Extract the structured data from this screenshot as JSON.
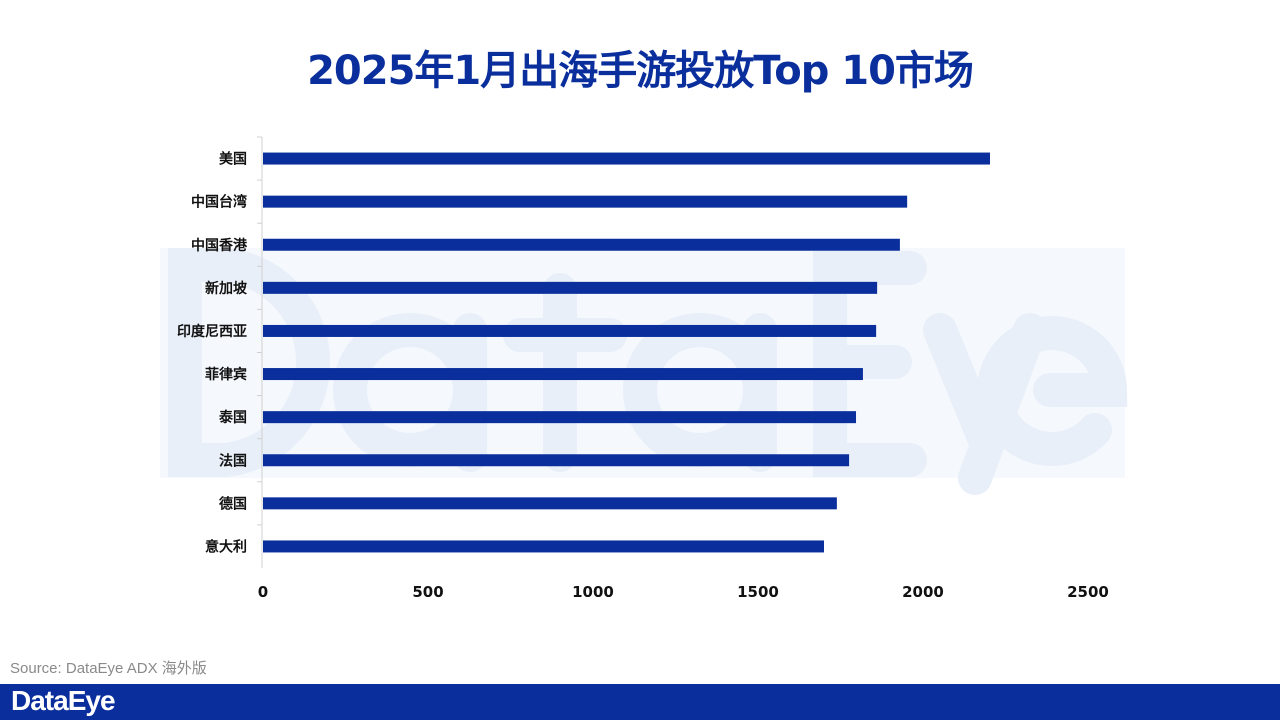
{
  "title": "2025年1月出海手游投放Top 10市场",
  "watermark": "DataEye",
  "source": "Source: DataEye ADX 海外版",
  "footer_logo": "DataEye",
  "colors": {
    "bar": "#0a2f9c",
    "title": "#0a2f9c",
    "footer": "#0a2f9c"
  },
  "chart_data": {
    "type": "bar",
    "orientation": "horizontal",
    "categories": [
      "美国",
      "中国台湾",
      "中国香港",
      "新加坡",
      "印度尼西亚",
      "菲律宾",
      "泰国",
      "法国",
      "德国",
      "意大利"
    ],
    "values": [
      2203,
      1952,
      1930,
      1861,
      1858,
      1818,
      1797,
      1776,
      1739,
      1700
    ],
    "xlim": [
      0,
      2500
    ],
    "xticks": [
      "0",
      "500",
      "1000",
      "1500",
      "2000",
      "2500"
    ],
    "grid": false,
    "legend": "none"
  }
}
